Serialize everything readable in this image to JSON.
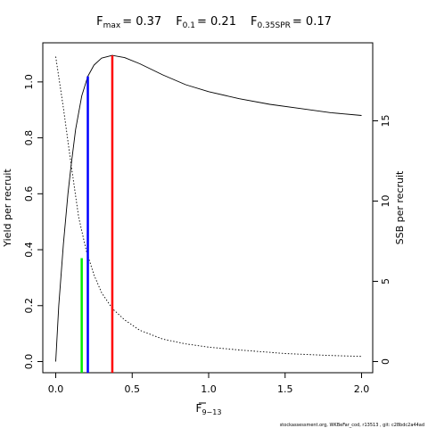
{
  "chart_data": {
    "type": "line",
    "title": {
      "fmax_label": "F",
      "fmax_sub": "max",
      "fmax_value": "= 0.37",
      "f01_label": "F",
      "f01_sub": "0.1",
      "f01_value": "= 0.21",
      "f35_label": "F",
      "f35_sub": "0.35SPR",
      "f35_value": "= 0.17"
    },
    "xlabel": {
      "main": "F",
      "sub": "9−13"
    },
    "ylabel_left": "Yield per recruit",
    "ylabel_right": "SSB per recruit",
    "footer": "stockassessment.org, WKBeFar_cod, r13513 , git: c28bdc2a44ad",
    "xlim": [
      0,
      2.0
    ],
    "ylim_left": [
      0,
      1.1
    ],
    "ylim_right": [
      0,
      19.2
    ],
    "x_ticks": [
      "0.0",
      "0.5",
      "1.0",
      "1.5",
      "2.0"
    ],
    "y_left_ticks": [
      "0.0",
      "0.2",
      "0.4",
      "0.6",
      "0.8",
      "1.0"
    ],
    "y_right_ticks": [
      "0",
      "5",
      "10",
      "15"
    ],
    "series": [
      {
        "id": "yield",
        "style": "solid",
        "axis": "left",
        "x": [
          0,
          0.02,
          0.05,
          0.08,
          0.1,
          0.13,
          0.17,
          0.21,
          0.25,
          0.3,
          0.37,
          0.45,
          0.55,
          0.7,
          0.85,
          1.0,
          1.2,
          1.4,
          1.6,
          1.8,
          2.0
        ],
        "y": [
          0.0,
          0.2,
          0.42,
          0.6,
          0.7,
          0.83,
          0.95,
          1.02,
          1.06,
          1.085,
          1.095,
          1.087,
          1.065,
          1.025,
          0.99,
          0.965,
          0.94,
          0.92,
          0.905,
          0.89,
          0.88
        ]
      },
      {
        "id": "ssb",
        "style": "dotted",
        "axis": "right",
        "x": [
          0,
          0.05,
          0.1,
          0.15,
          0.2,
          0.25,
          0.3,
          0.37,
          0.45,
          0.55,
          0.7,
          0.85,
          1.0,
          1.2,
          1.5,
          1.8,
          2.0
        ],
        "y": [
          19.0,
          15.8,
          12.3,
          9.0,
          6.9,
          5.4,
          4.3,
          3.3,
          2.6,
          1.95,
          1.4,
          1.1,
          0.9,
          0.72,
          0.5,
          0.38,
          0.32
        ]
      }
    ],
    "reference_lines": [
      {
        "id": "fmax",
        "x": 0.37,
        "y": 1.095,
        "color": "#ff0000"
      },
      {
        "id": "f01",
        "x": 0.21,
        "y": 1.02,
        "color": "#0000ff"
      },
      {
        "id": "f35spr",
        "x": 0.17,
        "y": 0.37,
        "color": "#00ee00"
      }
    ]
  }
}
